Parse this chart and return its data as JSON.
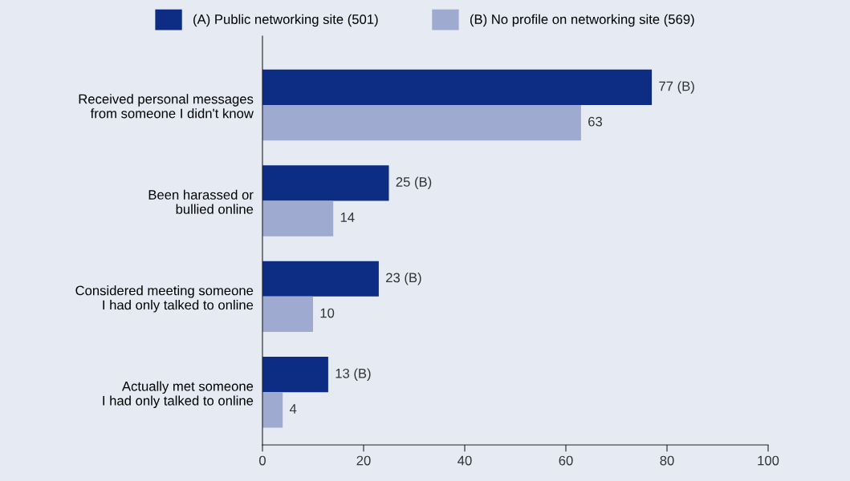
{
  "chart_data": {
    "type": "bar",
    "orientation": "horizontal",
    "categories": [
      "Received personal messages\nfrom someone I didn't know",
      "Been harassed or\nbullied online",
      "Considered meeting someone\nI had only talked to online",
      "Actually met someone\nI had only talked to online"
    ],
    "series": [
      {
        "name": "(A) Public networking site (501)",
        "color": "#0c2d83",
        "values": [
          77,
          25,
          23,
          13
        ],
        "value_labels": [
          "77 (B)",
          "25 (B)",
          "23 (B)",
          "13 (B)"
        ]
      },
      {
        "name": "(B) No profile on networking site (569)",
        "color": "#9eaacf",
        "values": [
          63,
          14,
          10,
          4
        ],
        "value_labels": [
          "63",
          "14",
          "10",
          "4"
        ]
      }
    ],
    "xlim": [
      0,
      100
    ],
    "xticks": [
      0,
      20,
      40,
      60,
      80,
      100
    ],
    "grid": false,
    "legend": "top"
  }
}
